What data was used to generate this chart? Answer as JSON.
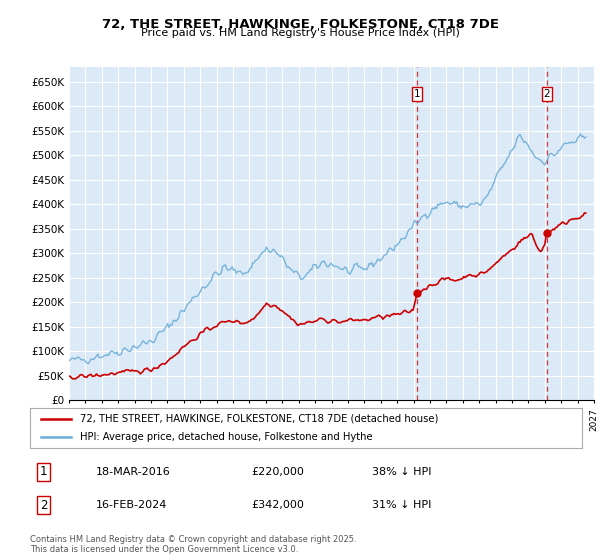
{
  "title": "72, THE STREET, HAWKINGE, FOLKESTONE, CT18 7DE",
  "subtitle": "Price paid vs. HM Land Registry's House Price Index (HPI)",
  "ylim": [
    0,
    680000
  ],
  "yticks": [
    0,
    50000,
    100000,
    150000,
    200000,
    250000,
    300000,
    350000,
    400000,
    450000,
    500000,
    550000,
    600000,
    650000
  ],
  "ytick_labels": [
    "£0",
    "£50K",
    "£100K",
    "£150K",
    "£200K",
    "£250K",
    "£300K",
    "£350K",
    "£400K",
    "£450K",
    "£500K",
    "£550K",
    "£600K",
    "£650K"
  ],
  "hpi_color": "#6baed6",
  "price_color": "#cc0000",
  "dashed_line_color": "#cc0000",
  "bg_color": "#dce9f7",
  "grid_color": "#ffffff",
  "legend_label_price": "72, THE STREET, HAWKINGE, FOLKESTONE, CT18 7DE (detached house)",
  "legend_label_hpi": "HPI: Average price, detached house, Folkestone and Hythe",
  "annotation1_date": "18-MAR-2016",
  "annotation1_price": "£220,000",
  "annotation1_note": "38% ↓ HPI",
  "annotation2_date": "16-FEB-2024",
  "annotation2_price": "£342,000",
  "annotation2_note": "31% ↓ HPI",
  "footnote": "Contains HM Land Registry data © Crown copyright and database right 2025.\nThis data is licensed under the Open Government Licence v3.0.",
  "t1_year": 2016.21,
  "t1_price": 220000,
  "t2_year": 2024.12,
  "t2_price": 342000
}
